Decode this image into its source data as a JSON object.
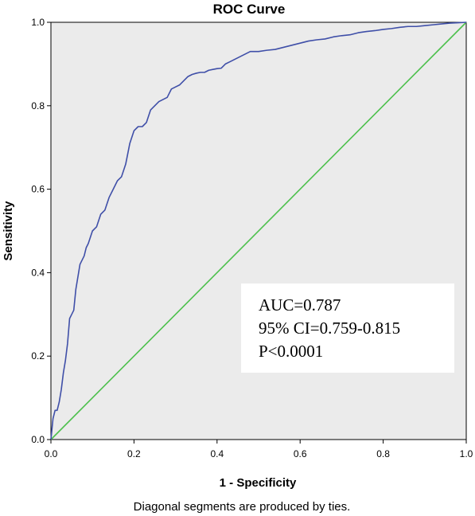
{
  "chart_data": {
    "type": "line",
    "title": "ROC Curve",
    "xlabel": "1 - Specificity",
    "ylabel": "Sensitivity",
    "footnote": "Diagonal segments are produced by ties.",
    "xlim": [
      0,
      1
    ],
    "ylim": [
      0,
      1
    ],
    "x_ticks": [
      "0.0",
      "0.2",
      "0.4",
      "0.6",
      "0.8",
      "1.0"
    ],
    "y_ticks": [
      "0.0",
      "0.2",
      "0.4",
      "0.6",
      "0.8",
      "1.0"
    ],
    "grid": false,
    "plot_background": "#ebebeb",
    "series": [
      {
        "color": "#3f4fa8",
        "x": [
          0,
          0.005,
          0.01,
          0.015,
          0.02,
          0.025,
          0.03,
          0.035,
          0.04,
          0.045,
          0.05,
          0.055,
          0.06,
          0.065,
          0.07,
          0.075,
          0.08,
          0.085,
          0.09,
          0.1,
          0.11,
          0.12,
          0.13,
          0.14,
          0.15,
          0.16,
          0.17,
          0.18,
          0.19,
          0.2,
          0.21,
          0.22,
          0.23,
          0.24,
          0.25,
          0.26,
          0.27,
          0.28,
          0.29,
          0.3,
          0.31,
          0.32,
          0.33,
          0.34,
          0.35,
          0.36,
          0.37,
          0.38,
          0.39,
          0.4,
          0.41,
          0.42,
          0.43,
          0.44,
          0.45,
          0.46,
          0.47,
          0.48,
          0.5,
          0.52,
          0.54,
          0.56,
          0.58,
          0.6,
          0.62,
          0.64,
          0.66,
          0.68,
          0.7,
          0.72,
          0.74,
          0.76,
          0.78,
          0.8,
          0.82,
          0.84,
          0.86,
          0.88,
          0.9,
          0.92,
          0.94,
          0.96,
          0.98,
          1.0
        ],
        "y": [
          0,
          0.05,
          0.07,
          0.07,
          0.09,
          0.12,
          0.16,
          0.19,
          0.23,
          0.29,
          0.3,
          0.31,
          0.36,
          0.39,
          0.42,
          0.43,
          0.44,
          0.46,
          0.47,
          0.5,
          0.51,
          0.54,
          0.55,
          0.58,
          0.6,
          0.62,
          0.63,
          0.66,
          0.71,
          0.74,
          0.75,
          0.75,
          0.76,
          0.79,
          0.8,
          0.81,
          0.815,
          0.82,
          0.84,
          0.845,
          0.85,
          0.86,
          0.87,
          0.875,
          0.878,
          0.88,
          0.88,
          0.885,
          0.887,
          0.889,
          0.89,
          0.9,
          0.905,
          0.91,
          0.915,
          0.92,
          0.925,
          0.93,
          0.93,
          0.933,
          0.935,
          0.94,
          0.945,
          0.95,
          0.955,
          0.958,
          0.96,
          0.965,
          0.968,
          0.97,
          0.975,
          0.978,
          0.98,
          0.983,
          0.985,
          0.988,
          0.99,
          0.99,
          0.992,
          0.994,
          0.996,
          0.998,
          0.999,
          1.0
        ]
      },
      {
        "color": "#4cc04c",
        "x": [
          0,
          1
        ],
        "y": [
          0,
          1
        ]
      }
    ],
    "annotations": [
      "AUC=0.787",
      "95% CI=0.759-0.815",
      "P<0.0001"
    ]
  }
}
